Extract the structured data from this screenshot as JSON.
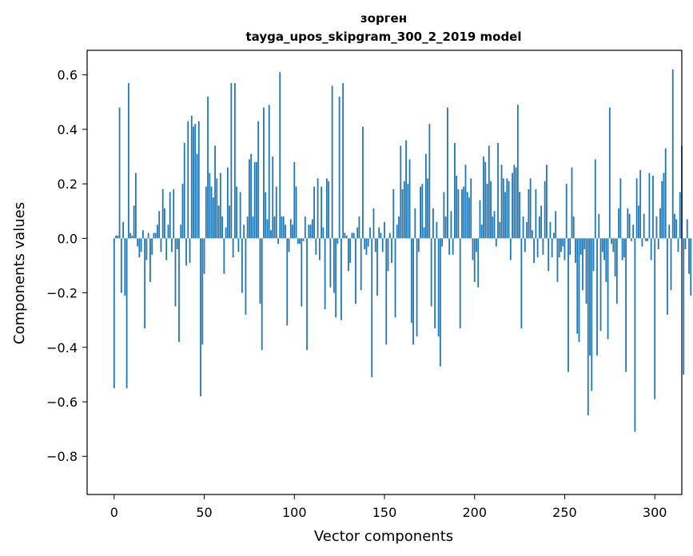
{
  "chart_data": {
    "type": "bar",
    "title": "зорген",
    "subtitle": "tayga_upos_skipgram_300_2_2019 model",
    "xlabel": "Vector components",
    "ylabel": "Components values",
    "xlim": [
      -15,
      315
    ],
    "ylim": [
      -0.94,
      0.69
    ],
    "xticks": [
      0,
      50,
      100,
      150,
      200,
      250,
      300
    ],
    "xtick_labels": [
      "0",
      "50",
      "100",
      "150",
      "200",
      "250",
      "300"
    ],
    "yticks": [
      -0.8,
      -0.6,
      -0.4,
      -0.2,
      0.0,
      0.2,
      0.4,
      0.6
    ],
    "ytick_labels": [
      "−0.8",
      "−0.6",
      "−0.4",
      "−0.2",
      "0.0",
      "0.2",
      "0.4",
      "0.6"
    ],
    "bar_color": "#1f77b4",
    "values": [
      -0.55,
      0.01,
      0.01,
      0.48,
      -0.2,
      0.06,
      -0.21,
      -0.55,
      0.57,
      0.02,
      0.01,
      0.12,
      0.24,
      -0.03,
      -0.07,
      -0.05,
      0.03,
      -0.33,
      -0.08,
      0.02,
      -0.16,
      -0.06,
      0.02,
      0.02,
      0.05,
      0.1,
      -0.05,
      0.18,
      0.11,
      -0.08,
      0.05,
      0.17,
      -0.05,
      0.18,
      -0.25,
      -0.04,
      -0.38,
      0.05,
      0.2,
      0.35,
      -0.1,
      0.43,
      -0.09,
      0.45,
      0.41,
      0.42,
      0.31,
      0.43,
      -0.58,
      -0.39,
      -0.13,
      0.19,
      0.52,
      0.24,
      0.19,
      0.15,
      0.34,
      0.22,
      0.12,
      0.24,
      0.08,
      -0.13,
      0.04,
      0.26,
      0.12,
      0.57,
      -0.07,
      0.57,
      0.19,
      -0.05,
      0.17,
      -0.2,
      0.05,
      -0.28,
      0.08,
      0.29,
      0.31,
      0.08,
      0.28,
      0.28,
      0.43,
      -0.24,
      -0.41,
      0.48,
      0.17,
      0.07,
      0.49,
      0.03,
      0.3,
      0.08,
      0.19,
      -0.02,
      0.61,
      0.08,
      0.08,
      0.05,
      -0.32,
      -0.05,
      0.07,
      0.05,
      0.28,
      0.19,
      -0.02,
      -0.02,
      -0.25,
      -0.01,
      0.08,
      -0.41,
      0.05,
      0.05,
      0.07,
      0.19,
      -0.06,
      0.22,
      -0.08,
      0.19,
      0.04,
      -0.26,
      0.22,
      0.21,
      -0.18,
      0.56,
      -0.2,
      -0.29,
      -0.02,
      0.52,
      -0.3,
      0.57,
      0.02,
      0.01,
      -0.12,
      -0.09,
      0.02,
      0.02,
      -0.24,
      0.04,
      0.08,
      -0.19,
      0.41,
      -0.04,
      -0.06,
      -0.03,
      0.04,
      -0.51,
      0.11,
      -0.05,
      -0.21,
      0.04,
      0.02,
      -0.05,
      0.06,
      -0.39,
      -0.12,
      0.02,
      -0.09,
      0.18,
      -0.29,
      0.05,
      0.08,
      0.34,
      0.18,
      0.21,
      0.36,
      0.2,
      0.29,
      -0.31,
      -0.39,
      0.11,
      -0.36,
      -0.05,
      0.19,
      0.2,
      0.04,
      0.31,
      0.22,
      0.42,
      -0.25,
      0.11,
      -0.33,
      0.06,
      -0.36,
      -0.47,
      -0.03,
      0.17,
      0.08,
      0.48,
      -0.06,
      0.1,
      -0.06,
      0.35,
      0.23,
      0.18,
      -0.33,
      0.18,
      0.19,
      0.27,
      0.17,
      0.15,
      0.22,
      -0.08,
      -0.16,
      -0.05,
      -0.18,
      0.14,
      0.05,
      0.3,
      0.28,
      0.2,
      0.34,
      0.21,
      0.08,
      0.1,
      -0.03,
      0.35,
      0.06,
      0.27,
      0.22,
      0.17,
      0.22,
      0.21,
      -0.08,
      0.24,
      0.27,
      0.26,
      0.49,
      0.17,
      -0.33,
      0.08,
      -0.05,
      0.06,
      0.18,
      0.22,
      0.03,
      -0.09,
      0.18,
      -0.07,
      0.08,
      0.12,
      -0.06,
      0.21,
      0.27,
      -0.12,
      0.06,
      -0.07,
      0.02,
      0.1,
      -0.16,
      -0.07,
      -0.05,
      -0.03,
      -0.08,
      0.2,
      -0.49,
      -0.06,
      0.26,
      0.08,
      -0.09,
      -0.35,
      -0.38,
      -0.06,
      -0.19,
      -0.04,
      -0.24,
      -0.65,
      -0.43,
      -0.56,
      -0.12,
      0.29,
      -0.43,
      0.09,
      -0.34,
      -0.05,
      -0.08,
      -0.16,
      -0.37,
      0.48,
      -0.02,
      -0.05,
      -0.14,
      -0.24,
      0.11,
      0.22,
      -0.08,
      -0.07,
      -0.49,
      0.11,
      0.09,
      -0.01,
      0.05,
      -0.71,
      0.22,
      0.12,
      0.25,
      -0.03,
      0.09,
      -0.01,
      -0.01,
      0.24,
      -0.08,
      0.23,
      -0.59,
      0.08,
      -0.04,
      0.11,
      0.21,
      0.24,
      0.33,
      -0.28,
      0.05,
      -0.19,
      0.62,
      0.09,
      0.07,
      -0.05,
      0.17,
      0.34,
      -0.5,
      -0.04,
      0.07,
      -0.13,
      -0.21
    ]
  }
}
